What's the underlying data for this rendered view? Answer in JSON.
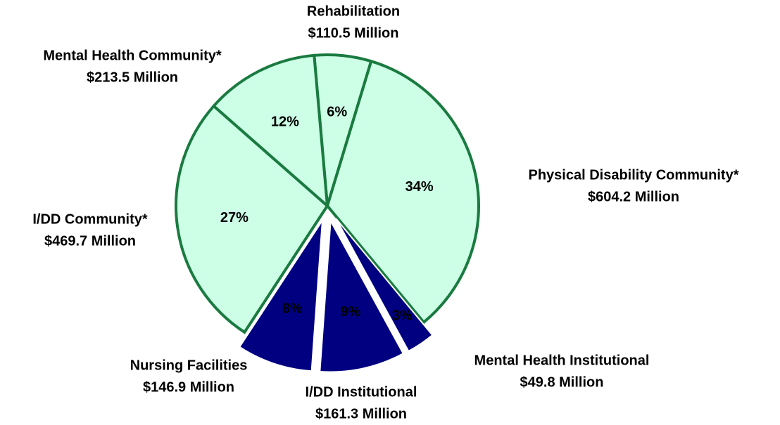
{
  "chart_data": {
    "type": "pie",
    "categories": [
      "Rehabilitation",
      "Physical Disability Community*",
      "Mental Health Institutional",
      "I/DD Institutional",
      "Nursing Facilities",
      "I/DD Community*",
      "Mental Health Community*"
    ],
    "amount_labels": [
      "$110.5 Million",
      "$604.2 Million",
      "$49.8 Million",
      "$161.3 Million",
      "$146.9 Million",
      "$469.7 Million",
      "$213.5 Million"
    ],
    "values": [
      6,
      34,
      3,
      9,
      8,
      27,
      12
    ],
    "value_labels": [
      "6%",
      "34%",
      "3%",
      "9%",
      "8%",
      "27%",
      "12%"
    ],
    "colors": [
      "#ccffe6",
      "#ccffe6",
      "#000080",
      "#000080",
      "#000080",
      "#ccffe6",
      "#ccffe6"
    ],
    "exploded": [
      false,
      false,
      true,
      true,
      true,
      false,
      false
    ]
  }
}
